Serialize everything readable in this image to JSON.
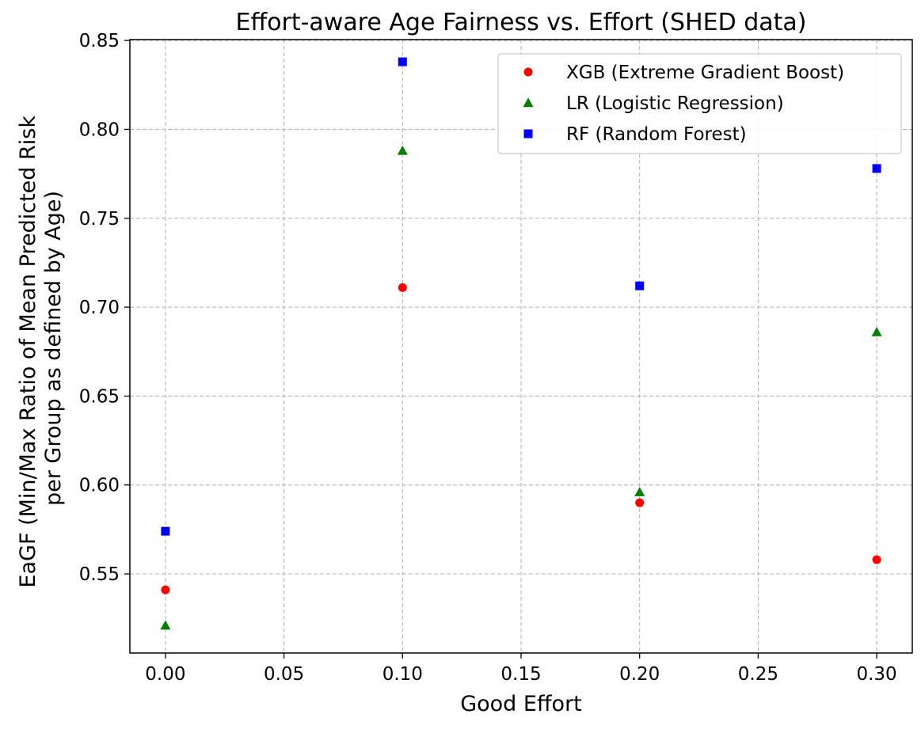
{
  "chart_data": {
    "type": "scatter",
    "title": "Effort-aware Age Fairness vs. Effort (SHED data)",
    "xlabel": "Good Effort",
    "ylabel_lines": [
      "EaGF (Min/Max Ratio of Mean Predicted Risk",
      "per Group as defined by Age)"
    ],
    "xlim": [
      -0.015,
      0.315
    ],
    "ylim": [
      0.5055,
      0.8505
    ],
    "x_ticks": [
      0.0,
      0.05,
      0.1,
      0.15,
      0.2,
      0.25,
      0.3
    ],
    "x_tick_labels": [
      "0.00",
      "0.05",
      "0.10",
      "0.15",
      "0.20",
      "0.25",
      "0.30"
    ],
    "y_ticks": [
      0.55,
      0.6,
      0.65,
      0.7,
      0.75,
      0.8,
      0.85
    ],
    "y_tick_labels": [
      "0.55",
      "0.60",
      "0.65",
      "0.70",
      "0.75",
      "0.80",
      "0.85"
    ],
    "grid": true,
    "legend_position": "top-right",
    "series": [
      {
        "name": "XGB (Extreme Gradient Boost)",
        "marker": "circle",
        "color": "#ff0000",
        "x": [
          0.0,
          0.1,
          0.2,
          0.3
        ],
        "y": [
          0.541,
          0.711,
          0.59,
          0.558
        ]
      },
      {
        "name": "LR (Logistic Regression)",
        "marker": "triangle",
        "color": "#008000",
        "x": [
          0.0,
          0.1,
          0.2,
          0.3
        ],
        "y": [
          0.521,
          0.788,
          0.596,
          0.686
        ]
      },
      {
        "name": "RF (Random Forest)",
        "marker": "square",
        "color": "#0000ff",
        "x": [
          0.0,
          0.1,
          0.2,
          0.3
        ],
        "y": [
          0.574,
          0.838,
          0.712,
          0.778
        ]
      }
    ]
  }
}
